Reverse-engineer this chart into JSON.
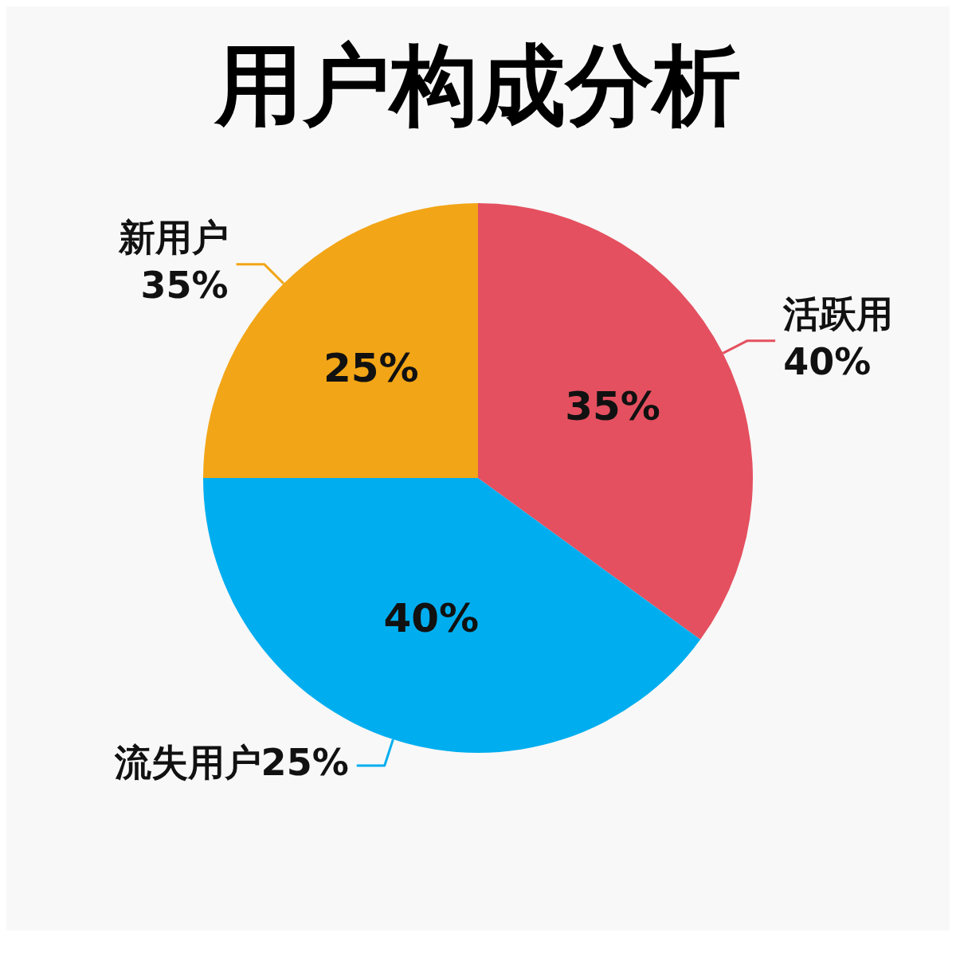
{
  "chart_data": {
    "type": "pie",
    "title": "用户构成分析",
    "categories": [
      "活跃用",
      "流失用户",
      "新用户"
    ],
    "values": [
      35,
      40,
      25
    ],
    "colors": [
      "#e4505f",
      "#00aeef",
      "#f2a516"
    ],
    "value_labels": [
      "35%",
      "40%",
      "25%"
    ],
    "annotations": [
      "40%",
      "25%",
      "35%"
    ],
    "legend": false
  }
}
